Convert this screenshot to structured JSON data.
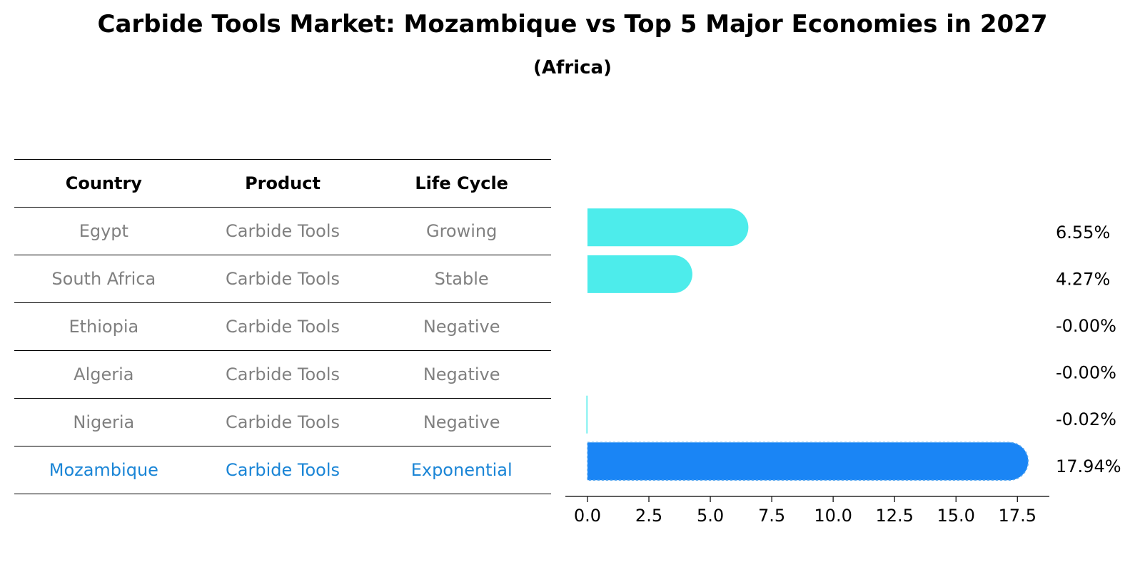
{
  "title": "Carbide Tools Market: Mozambique vs Top 5 Major Economies in 2027",
  "subtitle": "(Africa)",
  "table": {
    "headers": [
      "Country",
      "Product",
      "Life Cycle"
    ],
    "rows": [
      {
        "country": "Egypt",
        "product": "Carbide Tools",
        "life_cycle": "Growing"
      },
      {
        "country": "South Africa",
        "product": "Carbide Tools",
        "life_cycle": "Stable"
      },
      {
        "country": "Ethiopia",
        "product": "Carbide Tools",
        "life_cycle": "Negative"
      },
      {
        "country": "Algeria",
        "product": "Carbide Tools",
        "life_cycle": "Negative"
      },
      {
        "country": "Nigeria",
        "product": "Carbide Tools",
        "life_cycle": "Negative"
      },
      {
        "country": "Mozambique",
        "product": "Carbide Tools",
        "life_cycle": "Exponential"
      }
    ]
  },
  "colors": {
    "bar_default": "#4deceb",
    "bar_highlight": "#1a85f5",
    "text_highlight": "#1a85d6",
    "text_muted": "#808080"
  },
  "chart_data": {
    "type": "bar",
    "orientation": "horizontal",
    "categories": [
      "Egypt",
      "South Africa",
      "Ethiopia",
      "Algeria",
      "Nigeria",
      "Mozambique"
    ],
    "values": [
      6.55,
      4.27,
      -0.0,
      -0.0,
      -0.02,
      17.94
    ],
    "value_labels": [
      "6.55%",
      "4.27%",
      "-0.00%",
      "-0.00%",
      "-0.02%",
      "17.94%"
    ],
    "highlight_index": 5,
    "xlim": [
      -0.9,
      18.8
    ],
    "xticks": [
      0.0,
      2.5,
      5.0,
      7.5,
      10.0,
      12.5,
      15.0,
      17.5
    ],
    "xtick_labels": [
      "0.0",
      "2.5",
      "5.0",
      "7.5",
      "10.0",
      "12.5",
      "15.0",
      "17.5"
    ],
    "xlabel": "",
    "ylabel": "",
    "grid": false
  }
}
